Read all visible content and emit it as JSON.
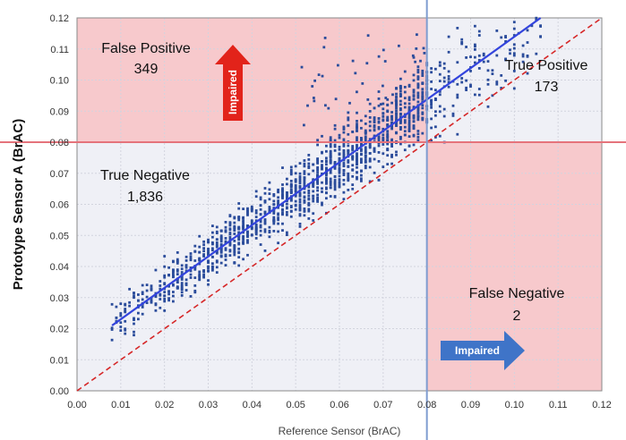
{
  "chart_data": {
    "type": "scatter",
    "title": "",
    "xlabel": "Reference Sensor (BrAC)",
    "ylabel": "Prototype Sensor A (BrAC)",
    "xlim": [
      0,
      0.12
    ],
    "ylim": [
      0,
      0.12
    ],
    "x_ticks": [
      "0.00",
      "0.01",
      "0.02",
      "0.03",
      "0.04",
      "0.05",
      "0.06",
      "0.07",
      "0.08",
      "0.09",
      "0.10",
      "0.11",
      "0.12"
    ],
    "y_ticks": [
      "0.00",
      "0.01",
      "0.02",
      "0.03",
      "0.04",
      "0.05",
      "0.06",
      "0.07",
      "0.08",
      "0.09",
      "0.10",
      "0.11",
      "0.12"
    ],
    "grid": true,
    "threshold_x": 0.08,
    "threshold_y": 0.08,
    "identity_line": {
      "from": [
        0,
        0
      ],
      "to": [
        0.12,
        0.12
      ],
      "color": "#d62728"
    },
    "regression_line": {
      "from": [
        0.008,
        0.021
      ],
      "to": [
        0.106,
        0.12
      ],
      "color": "#3344dd"
    },
    "point_color": "#2b4c9b",
    "quadrant_fill": "#f7c9cc",
    "quadrants": [
      {
        "label": "False Positive",
        "count": "349"
      },
      {
        "label": "True Positive",
        "count": "173"
      },
      {
        "label": "True Negative",
        "count": "1,836"
      },
      {
        "label": "False Negative",
        "count": "2"
      }
    ],
    "arrows": [
      {
        "label": "Impaired",
        "direction": "up",
        "color": "#e2231a"
      },
      {
        "label": "Impaired",
        "direction": "right",
        "color": "#3f74c8"
      }
    ]
  }
}
